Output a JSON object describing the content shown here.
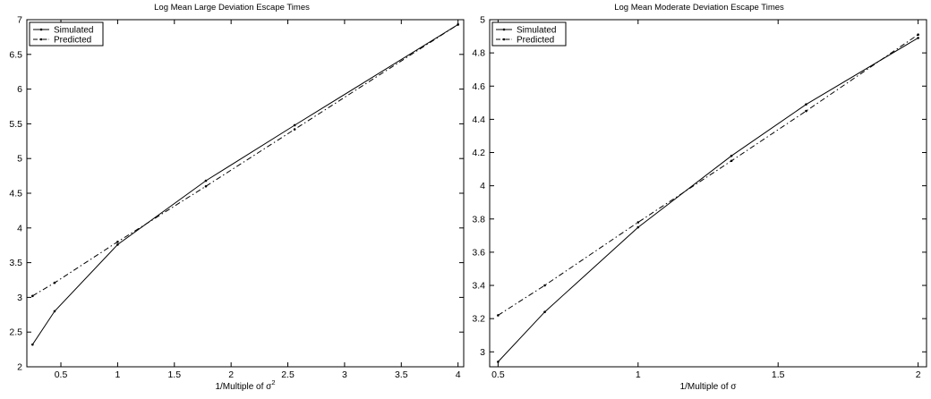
{
  "chart_data": [
    {
      "type": "line",
      "title": "Log Mean Large Deviation Escape Times",
      "xlabel_base": "1/Multiple of σ",
      "xlabel_sup": "2",
      "ylabel": "",
      "xlim": [
        0.2,
        4.05
      ],
      "ylim": [
        2,
        7
      ],
      "x_ticks": [
        0.5,
        1,
        1.5,
        2,
        2.5,
        3,
        3.5,
        4
      ],
      "y_ticks": [
        2,
        2.5,
        3,
        3.5,
        4,
        4.5,
        5,
        5.5,
        6,
        6.5,
        7
      ],
      "grid": false,
      "legend_position": "top-left",
      "series": [
        {
          "name": "Simulated",
          "style": "solid",
          "color": "#000000",
          "x": [
            0.25,
            0.4444,
            1,
            1.7778,
            2.56,
            4
          ],
          "y": [
            2.32,
            2.8,
            3.76,
            4.68,
            5.48,
            6.93
          ]
        },
        {
          "name": "Predicted",
          "style": "dashdot",
          "color": "#000000",
          "x": [
            0.25,
            0.4444,
            1,
            1.7778,
            2.56,
            4
          ],
          "y": [
            3.02,
            3.21,
            3.8,
            4.6,
            5.42,
            6.93
          ]
        }
      ]
    },
    {
      "type": "line",
      "title": "Log Mean Moderate Deviation Escape Times",
      "xlabel_base": "1/Multiple of σ",
      "xlabel_sup": "",
      "ylabel": "",
      "xlim": [
        0.47,
        2.03
      ],
      "ylim": [
        2.91,
        5.0
      ],
      "x_ticks": [
        0.5,
        1,
        1.5,
        2
      ],
      "y_ticks": [
        3,
        3.2,
        3.4,
        3.6,
        3.8,
        4,
        4.2,
        4.4,
        4.6,
        4.8,
        5
      ],
      "grid": false,
      "legend_position": "top-left",
      "series": [
        {
          "name": "Simulated",
          "style": "solid",
          "color": "#000000",
          "x": [
            0.5,
            0.6667,
            1,
            1.3333,
            1.6,
            2
          ],
          "y": [
            2.94,
            3.24,
            3.75,
            4.18,
            4.49,
            4.89
          ]
        },
        {
          "name": "Predicted",
          "style": "dashdot",
          "color": "#000000",
          "x": [
            0.5,
            0.6667,
            1,
            1.3333,
            1.6,
            2
          ],
          "y": [
            3.22,
            3.4,
            3.78,
            4.15,
            4.45,
            4.91
          ]
        }
      ]
    }
  ]
}
